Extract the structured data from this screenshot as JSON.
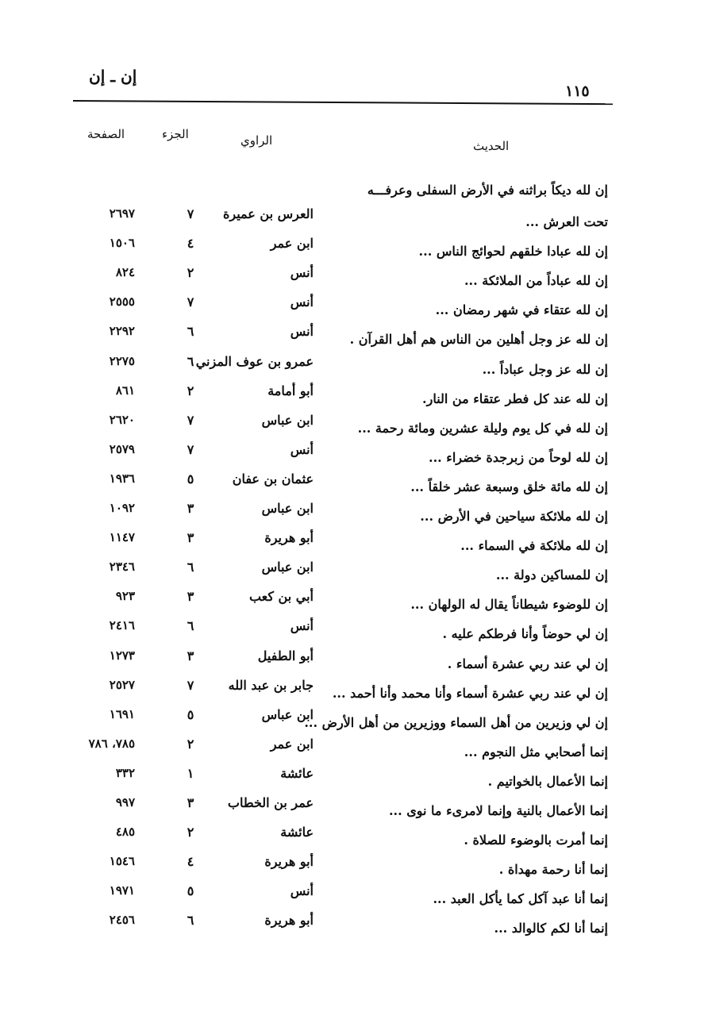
{
  "header": {
    "section": "إن ـ إن",
    "page_number": "١١٥"
  },
  "columns": {
    "hadith": "الحديث",
    "narrator": "الراوي",
    "juz": "الجزء",
    "page": "الصفحة"
  },
  "first_line": "إن لله ديكاً براثنه في الأرض السفلى وعرفـــه",
  "rows": [
    {
      "hadith": "تحت العرش ...",
      "narrator": "العرس بن عميرة",
      "juz": "٧",
      "page": "٢٦٩٧"
    },
    {
      "hadith": "إن لله عبادا خلقهم لحوائج الناس ...",
      "narrator": "ابن عمر",
      "juz": "٤",
      "page": "١٥٠٦"
    },
    {
      "hadith": "إن لله عباداً من الملائكة ...",
      "narrator": "أنس",
      "juz": "٢",
      "page": "٨٢٤"
    },
    {
      "hadith": "إن لله عتقاء في شهر رمضان ...",
      "narrator": "أنس",
      "juz": "٧",
      "page": "٢٥٥٥"
    },
    {
      "hadith": "إن لله عز وجل أهلين من الناس هم أهل القرآن .",
      "narrator": "أنس",
      "juz": "٦",
      "page": "٢٢٩٢"
    },
    {
      "hadith": "إن لله عز وجل عباداً ...",
      "narrator": "عمرو بن عوف المزني",
      "juz": "٦",
      "page": "٢٢٧٥"
    },
    {
      "hadith": "إن لله عند كل فطر عتقاء من النار.",
      "narrator": "أبو أمامة",
      "juz": "٢",
      "page": "٨٦١"
    },
    {
      "hadith": "إن لله في كل يوم وليلة عشرين ومائة رحمة ...",
      "narrator": "ابن عباس",
      "juz": "٧",
      "page": "٢٦٢٠"
    },
    {
      "hadith": "إن لله لوحاً من زبرجدة خضراء ...",
      "narrator": "أنس",
      "juz": "٧",
      "page": "٢٥٧٩"
    },
    {
      "hadith": "إن لله مائة خلق وسبعة عشر خلقاً ...",
      "narrator": "عثمان بن عفان",
      "juz": "٥",
      "page": "١٩٣٦"
    },
    {
      "hadith": "إن لله ملائكة سياحين في الأرض ...",
      "narrator": "ابن عباس",
      "juz": "٣",
      "page": "١٠٩٢"
    },
    {
      "hadith": "إن لله ملائكة في السماء ...",
      "narrator": "أبو هريرة",
      "juz": "٣",
      "page": "١١٤٧"
    },
    {
      "hadith": "إن للمساكين دولة ...",
      "narrator": "ابن عباس",
      "juz": "٦",
      "page": "٢٣٤٦"
    },
    {
      "hadith": "إن للوضوء شيطاناً يقال له الولهان ...",
      "narrator": "أبي بن كعب",
      "juz": "٣",
      "page": "٩٢٣"
    },
    {
      "hadith": "إن لي حوضاً وأنا فرطكم عليه .",
      "narrator": "أنس",
      "juz": "٦",
      "page": "٢٤١٦"
    },
    {
      "hadith": "إن لي عند ربي عشرة أسماء .",
      "narrator": "أبو الطفيل",
      "juz": "٣",
      "page": "١٢٧٣"
    },
    {
      "hadith": "إن لي عند ربي عشرة أسماء وأنا محمد وأنا أحمد ...",
      "narrator": "جابر بن عبد الله",
      "juz": "٧",
      "page": "٢٥٢٧"
    },
    {
      "hadith": "إن لي وزيرين من أهل السماء ووزيرين من أهل الأرض ...",
      "narrator": "ابن عباس",
      "juz": "٥",
      "page": "١٦٩١"
    },
    {
      "hadith": "إنما أصحابي مثل النجوم ...",
      "narrator": "ابن عمر",
      "juz": "٢",
      "page": "٧٨٥، ٧٨٦"
    },
    {
      "hadith": "إنما الأعمال بالخواتيم .",
      "narrator": "عائشة",
      "juz": "١",
      "page": "٣٣٢"
    },
    {
      "hadith": "إنما الأعمال بالنية وإنما لامرىء ما نوى ...",
      "narrator": "عمر بن الخطاب",
      "juz": "٣",
      "page": "٩٩٧"
    },
    {
      "hadith": "إنما أمرت بالوضوء للصلاة .",
      "narrator": "عائشة",
      "juz": "٢",
      "page": "٤٨٥"
    },
    {
      "hadith": "إنما أنا رحمة مهداة .",
      "narrator": "أبو هريرة",
      "juz": "٤",
      "page": "١٥٤٦"
    },
    {
      "hadith": "إنما أنا عبد آكل كما يأكل العبد ...",
      "narrator": "أنس",
      "juz": "٥",
      "page": "١٩٧١"
    },
    {
      "hadith": "إنما أنا لكم كالوالد ...",
      "narrator": "أبو هريرة",
      "juz": "٦",
      "page": "٢٤٥٦"
    }
  ]
}
